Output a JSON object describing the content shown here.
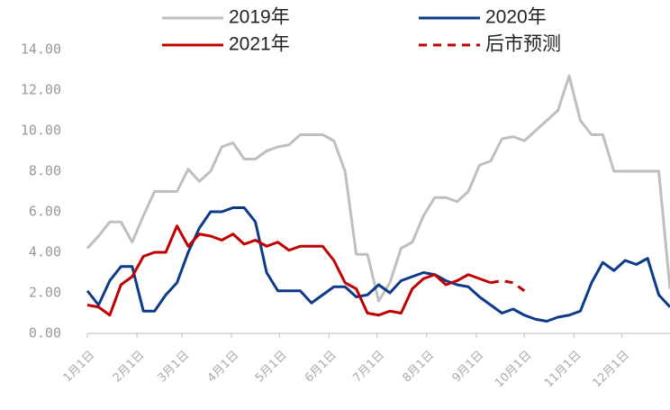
{
  "chart_data": {
    "type": "line",
    "x": [
      0,
      7,
      14,
      21,
      28,
      35,
      42,
      49,
      56,
      63,
      70,
      77,
      84,
      91,
      98,
      105,
      112,
      119,
      126,
      133,
      140,
      147,
      154,
      161,
      168,
      175,
      182,
      189,
      196,
      203,
      210,
      217,
      224,
      231,
      238,
      245,
      252,
      259,
      266,
      273,
      280,
      287,
      294,
      301,
      308,
      315,
      322,
      329,
      336,
      343,
      350,
      357,
      364
    ],
    "xlim": [
      0,
      364
    ],
    "xticks": [
      {
        "value": 0,
        "label": "1月1日"
      },
      {
        "value": 31,
        "label": "2月1日"
      },
      {
        "value": 59,
        "label": "3月1日"
      },
      {
        "value": 90,
        "label": "4月1日"
      },
      {
        "value": 120,
        "label": "5月1日"
      },
      {
        "value": 151,
        "label": "6月1日"
      },
      {
        "value": 181,
        "label": "7月1日"
      },
      {
        "value": 212,
        "label": "8月1日"
      },
      {
        "value": 243,
        "label": "9月1日"
      },
      {
        "value": 273,
        "label": "10月1日"
      },
      {
        "value": 304,
        "label": "11月1日"
      },
      {
        "value": 334,
        "label": "12月1日"
      }
    ],
    "ylim": [
      0,
      14
    ],
    "yticks": [
      {
        "value": 0,
        "label": "0.00"
      },
      {
        "value": 2,
        "label": "2.00"
      },
      {
        "value": 4,
        "label": "4.00"
      },
      {
        "value": 6,
        "label": "6.00"
      },
      {
        "value": 8,
        "label": "8.00"
      },
      {
        "value": 10,
        "label": "10.00"
      },
      {
        "value": 12,
        "label": "12.00"
      },
      {
        "value": 14,
        "label": "14.00"
      }
    ],
    "series": [
      {
        "name": "2019年",
        "color": "#bfbfbf",
        "dashed": false,
        "values": [
          4.2,
          4.8,
          5.5,
          5.5,
          4.5,
          5.8,
          7.0,
          7.0,
          7.0,
          8.1,
          7.5,
          8.0,
          9.2,
          9.4,
          8.6,
          8.6,
          9.0,
          9.2,
          9.3,
          9.8,
          9.8,
          9.8,
          9.5,
          8.0,
          3.9,
          3.9,
          1.6,
          2.5,
          4.2,
          4.5,
          5.8,
          6.7,
          6.7,
          6.5,
          7.0,
          8.3,
          8.5,
          9.6,
          9.7,
          9.5,
          10.0,
          10.5,
          11.0,
          12.7,
          10.5,
          9.8,
          9.8,
          8.0,
          8.0,
          8.0,
          8.0,
          8.0,
          2.2
        ]
      },
      {
        "name": "2020年",
        "color": "#0d3b8a",
        "dashed": false,
        "values": [
          2.1,
          1.4,
          2.6,
          3.3,
          3.3,
          1.1,
          1.1,
          1.9,
          2.5,
          4.0,
          5.2,
          6.0,
          6.0,
          6.2,
          6.2,
          5.5,
          3.0,
          2.1,
          2.1,
          2.1,
          1.5,
          1.9,
          2.3,
          2.3,
          1.8,
          1.9,
          2.4,
          2.0,
          2.6,
          2.8,
          3.0,
          2.9,
          2.6,
          2.4,
          2.3,
          1.8,
          1.4,
          1.0,
          1.2,
          0.9,
          0.7,
          0.6,
          0.8,
          0.9,
          1.1,
          2.5,
          3.5,
          3.1,
          3.6,
          3.4,
          3.7,
          1.9,
          1.3
        ]
      },
      {
        "name": "2021年",
        "color": "#c00000",
        "dashed": false,
        "values": [
          1.4,
          1.3,
          0.9,
          2.4,
          2.8,
          3.8,
          4.0,
          4.0,
          5.3,
          4.3,
          4.9,
          4.8,
          4.6,
          4.9,
          4.4,
          4.6,
          4.3,
          4.5,
          4.1,
          4.3,
          4.3,
          4.3,
          3.6,
          2.5,
          2.2,
          1.0,
          0.9,
          1.1,
          1.0,
          2.2,
          2.7,
          2.9,
          2.4,
          2.6,
          2.9,
          2.7,
          2.5,
          null,
          null,
          null,
          null,
          null,
          null,
          null,
          null,
          null,
          null,
          null,
          null,
          null,
          null,
          null,
          null
        ]
      },
      {
        "name": "后市预测",
        "color": "#c00000",
        "dashed": true,
        "values": [
          null,
          null,
          null,
          null,
          null,
          null,
          null,
          null,
          null,
          null,
          null,
          null,
          null,
          null,
          null,
          null,
          null,
          null,
          null,
          null,
          null,
          null,
          null,
          null,
          null,
          null,
          null,
          null,
          null,
          null,
          null,
          null,
          null,
          null,
          null,
          null,
          2.5,
          2.6,
          2.5,
          2.1,
          null,
          null,
          null,
          null,
          null,
          null,
          null,
          null,
          null,
          null,
          null,
          null,
          null
        ]
      }
    ]
  }
}
